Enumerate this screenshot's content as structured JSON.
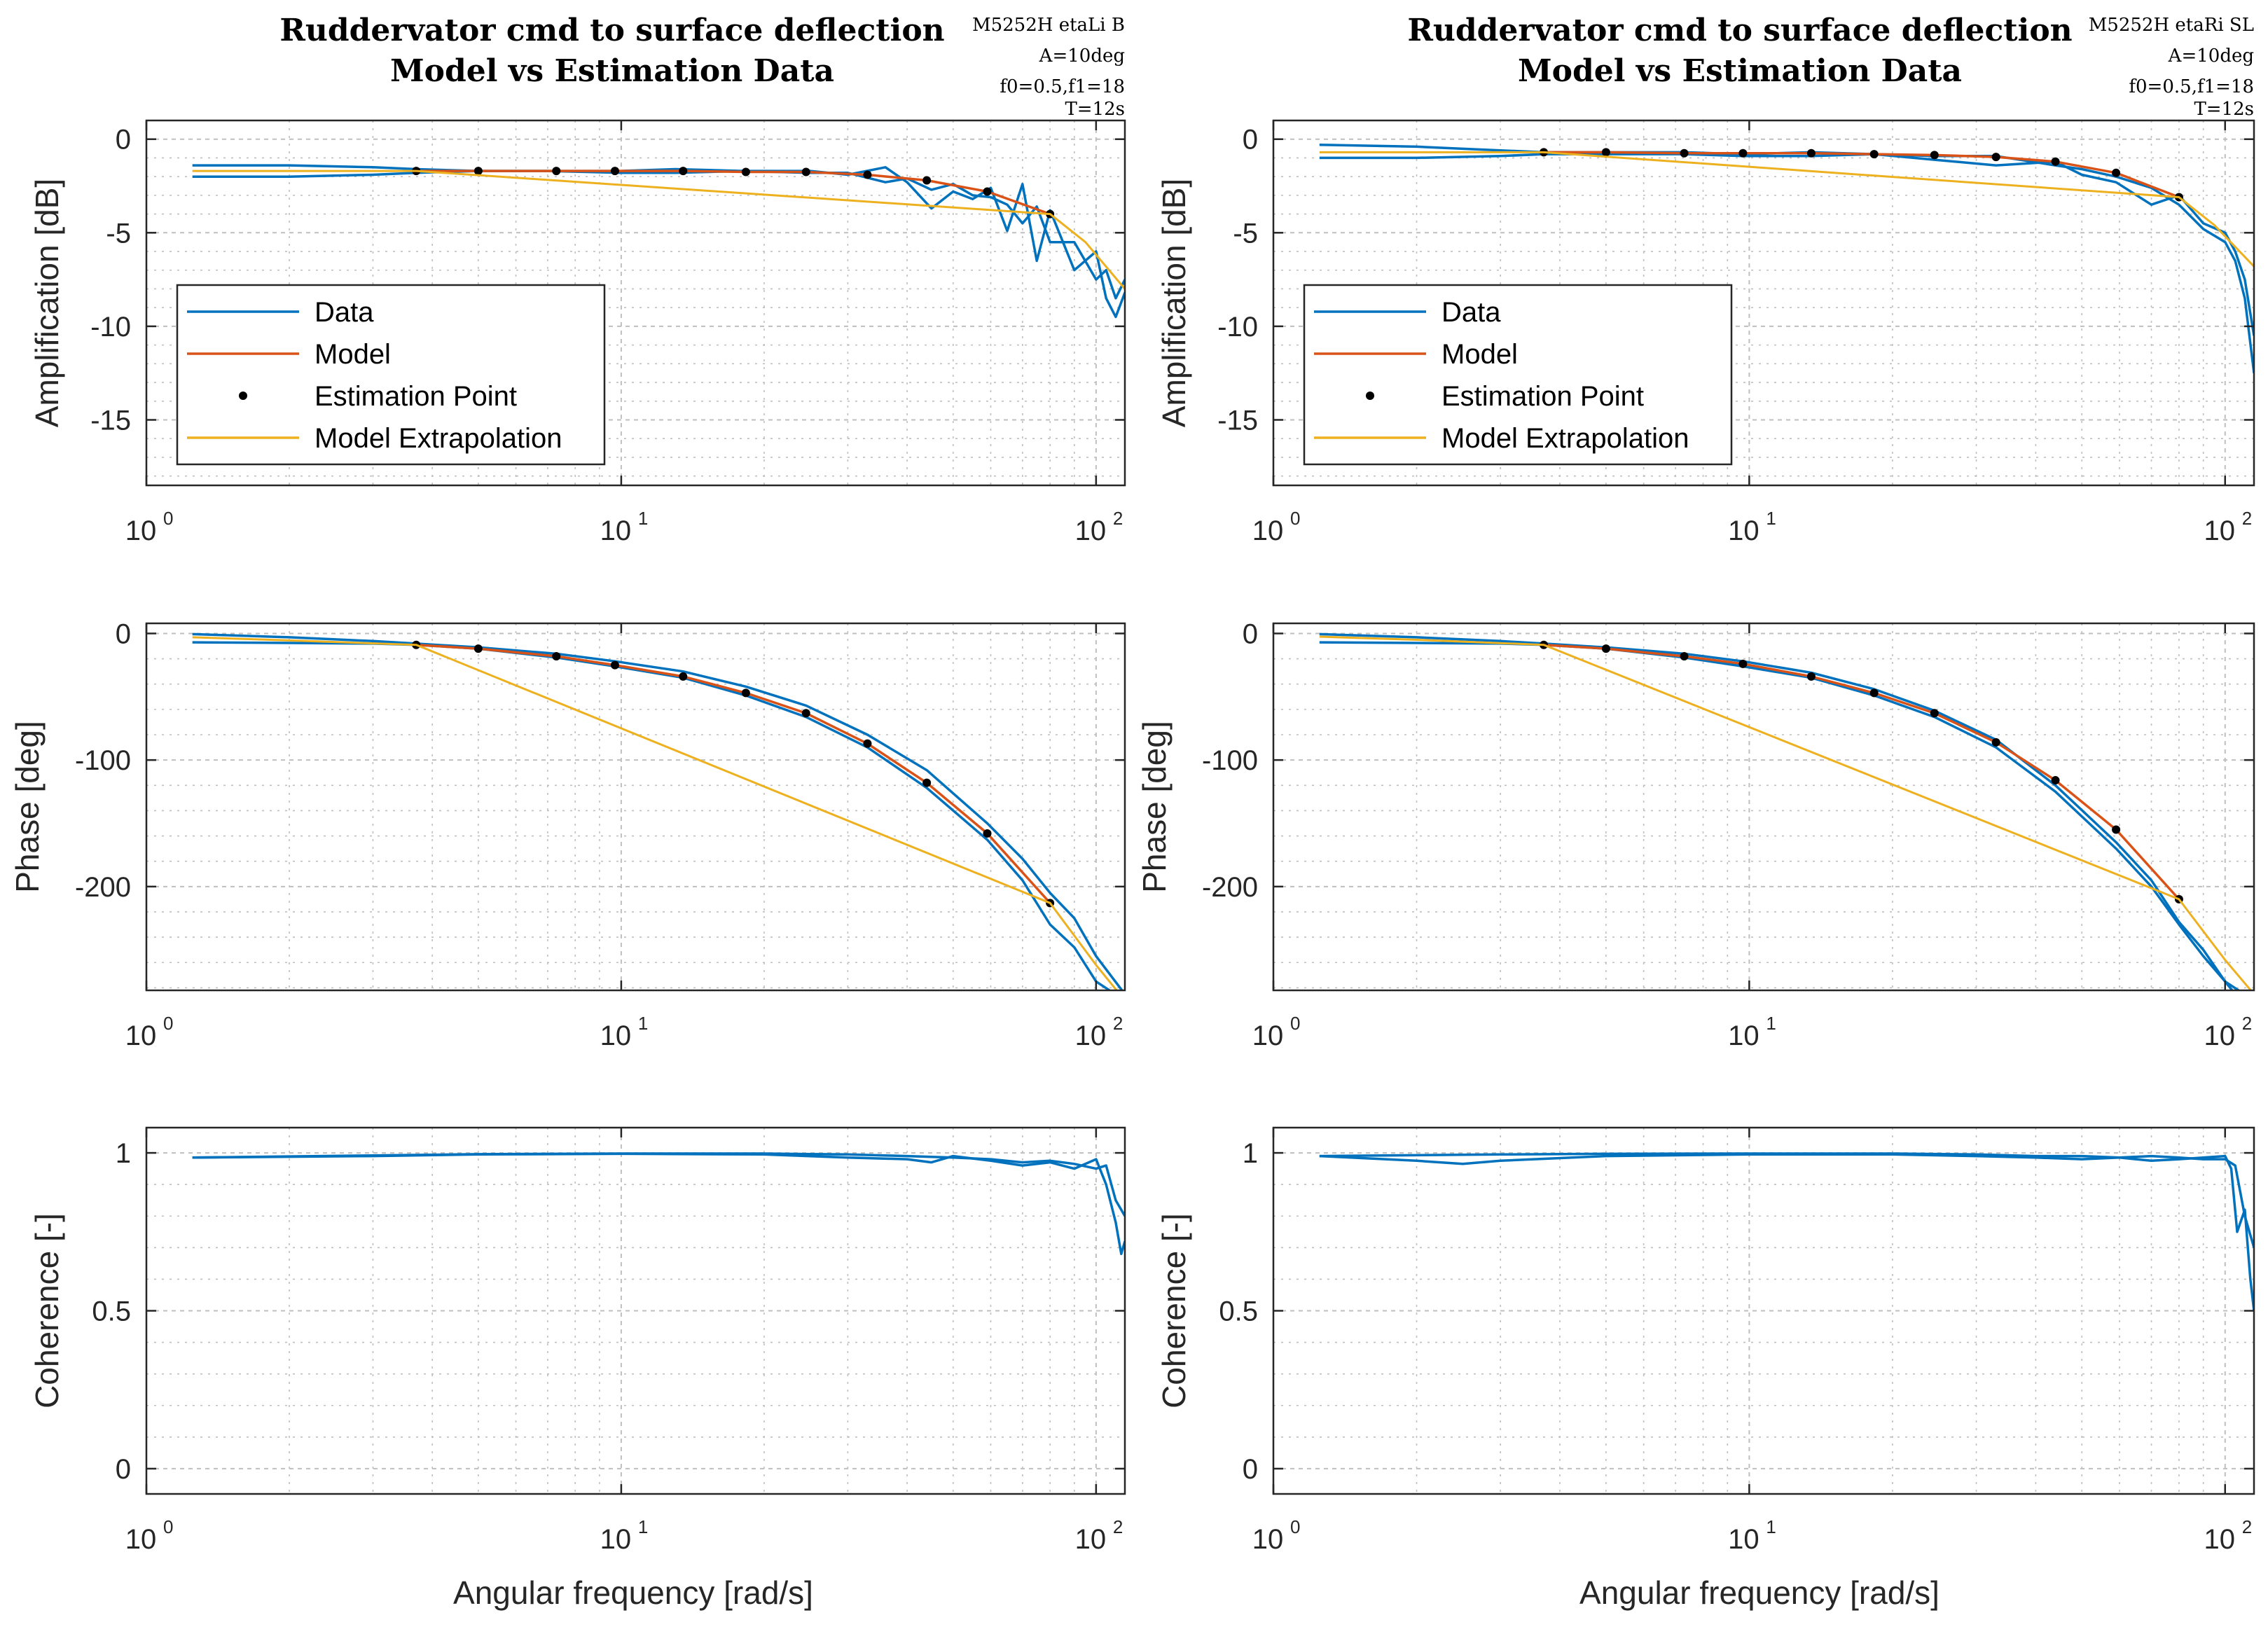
{
  "colors": {
    "data": "#0072BD",
    "model": "#D95319",
    "extrapolation": "#EDB120",
    "estimation_point": "#000000",
    "grid": "#bfbfbf",
    "axis": "#262626"
  },
  "figures": [
    {
      "title_line1": "Ruddervator cmd to surface deflection",
      "title_line2": "Model vs Estimation Data",
      "info": [
        "M5252H etaLi B",
        "A=10deg",
        "f0=0.5,f1=18",
        "T=12s"
      ]
    },
    {
      "title_line1": "Ruddervator cmd to surface deflection",
      "title_line2": "Model vs Estimation Data",
      "info": [
        "M5252H etaRi SL",
        "A=10deg",
        "f0=0.5,f1=18",
        "T=12s"
      ]
    }
  ],
  "legend": [
    "Data",
    "Model",
    "Estimation Point",
    "Model Extrapolation"
  ],
  "x_axis": {
    "label": "Angular frequency [rad/s]",
    "scale": "log",
    "xlim": [
      1,
      115
    ],
    "ticks": [
      {
        "base": "10",
        "exp": "0"
      },
      {
        "base": "10",
        "exp": "1"
      },
      {
        "base": "10",
        "exp": "2"
      }
    ]
  },
  "panel_labels": {
    "amplitude": "Amplification [dB]",
    "phase": "Phase [deg]",
    "coherence": "Coherence [-]"
  },
  "y_ticks": {
    "amplitude": [
      "0",
      "-5",
      "-10",
      "-15"
    ],
    "phase": [
      "0",
      "-100",
      "-200"
    ],
    "coherence": [
      "1",
      "0.5",
      "0"
    ]
  },
  "chart_data": [
    {
      "type": "line",
      "title": "Ruddervator cmd to surface deflection - Model vs Estimation Data (etaLi B) - Amplification",
      "xlabel": "Angular frequency [rad/s]",
      "ylabel": "Amplification [dB]",
      "xscale": "log",
      "xlim": [
        1,
        115
      ],
      "ylim": [
        -18.5,
        1
      ],
      "grid": true,
      "legend_location": "west",
      "series": [
        {
          "name": "Data",
          "x": [
            1.25,
            2,
            3,
            3.7,
            5,
            7,
            10,
            13,
            18,
            25,
            30,
            36,
            40,
            45,
            50,
            55,
            60,
            65,
            70,
            75,
            80,
            90,
            100,
            105,
            110,
            115
          ],
          "values": [
            -1.4,
            -1.4,
            -1.5,
            -1.6,
            -1.7,
            -1.7,
            -1.7,
            -1.6,
            -1.7,
            -1.7,
            -1.9,
            -1.5,
            -2.3,
            -3.7,
            -2.8,
            -3.2,
            -2.6,
            -4.9,
            -2.4,
            -6.5,
            -3.8,
            -7,
            -6,
            -8.5,
            -9.5,
            -8.2
          ]
        },
        {
          "name": "Data",
          "x": [
            1.25,
            2,
            3,
            3.7,
            5,
            7,
            10,
            13,
            18,
            25,
            30,
            36,
            40,
            45,
            50,
            55,
            60,
            65,
            70,
            75,
            80,
            90,
            100,
            105,
            110,
            115
          ],
          "values": [
            -2.0,
            -2.0,
            -1.9,
            -1.8,
            -1.7,
            -1.7,
            -1.8,
            -1.8,
            -1.7,
            -1.8,
            -1.8,
            -2.3,
            -2.1,
            -2.7,
            -2.4,
            -3.0,
            -3.1,
            -3.5,
            -4.5,
            -3.6,
            -5.5,
            -5.5,
            -7.5,
            -7.0,
            -8.5,
            -7.5
          ]
        },
        {
          "name": "Model",
          "x": [
            3.7,
            5,
            7.3,
            9.7,
            13.5,
            18.3,
            24.5,
            33,
            44,
            59,
            80
          ],
          "values": [
            -1.7,
            -1.7,
            -1.7,
            -1.7,
            -1.7,
            -1.75,
            -1.75,
            -1.9,
            -2.2,
            -2.8,
            -4.0
          ]
        },
        {
          "name": "Estimation Point",
          "x": [
            3.7,
            5,
            7.3,
            9.7,
            13.5,
            18.3,
            24.5,
            33,
            44,
            59,
            80
          ],
          "values": [
            -1.7,
            -1.7,
            -1.7,
            -1.7,
            -1.7,
            -1.75,
            -1.75,
            -1.9,
            -2.2,
            -2.8,
            -4.0
          ]
        },
        {
          "name": "Model Extrapolation",
          "x": [
            1.25,
            2,
            3.7,
            80,
            95,
            115
          ],
          "values": [
            -1.7,
            -1.7,
            -1.7,
            -4.0,
            -5.5,
            -8.0
          ]
        }
      ]
    },
    {
      "type": "line",
      "title": "Ruddervator cmd to surface deflection - Model vs Estimation Data (etaLi B) - Phase",
      "xlabel": "Angular frequency [rad/s]",
      "ylabel": "Phase [deg]",
      "xscale": "log",
      "xlim": [
        1,
        115
      ],
      "ylim": [
        -282,
        8
      ],
      "grid": true,
      "series": [
        {
          "name": "Data",
          "x": [
            1.25,
            2,
            3,
            3.7,
            5,
            7.3,
            9.7,
            13.5,
            18.3,
            24.5,
            33,
            44,
            59,
            70,
            80,
            90,
            100,
            115
          ],
          "values": [
            -0.5,
            -3,
            -6,
            -8,
            -11,
            -16,
            -22,
            -30,
            -42,
            -57,
            -80,
            -108,
            -150,
            -178,
            -205,
            -225,
            -255,
            -285
          ]
        },
        {
          "name": "Data",
          "x": [
            1.25,
            2,
            3,
            3.7,
            5,
            7.3,
            9.7,
            13.5,
            18.3,
            24.5,
            33,
            44,
            59,
            70,
            80,
            90,
            100,
            115
          ],
          "values": [
            -7,
            -7.5,
            -8,
            -9,
            -12,
            -19,
            -26,
            -35,
            -49,
            -66,
            -90,
            -122,
            -163,
            -195,
            -230,
            -248,
            -275,
            -290
          ]
        },
        {
          "name": "Model",
          "x": [
            3.7,
            5,
            7.3,
            9.7,
            13.5,
            18.3,
            24.5,
            33,
            44,
            59,
            80
          ],
          "values": [
            -9,
            -12,
            -18,
            -25,
            -34,
            -47,
            -63,
            -87,
            -118,
            -158,
            -213
          ]
        },
        {
          "name": "Estimation Point",
          "x": [
            3.7,
            5,
            7.3,
            9.7,
            13.5,
            18.3,
            24.5,
            33,
            44,
            59,
            80
          ],
          "values": [
            -9,
            -12,
            -18,
            -25,
            -34,
            -47,
            -63,
            -87,
            -118,
            -158,
            -213
          ]
        },
        {
          "name": "Model Extrapolation",
          "x": [
            1.25,
            2,
            3.7,
            80,
            100,
            115
          ],
          "values": [
            -3,
            -5.5,
            -9,
            -213,
            -262,
            -290
          ]
        }
      ]
    },
    {
      "type": "line",
      "title": "Ruddervator cmd to surface deflection - Model vs Estimation Data (etaLi B) - Coherence",
      "xlabel": "Angular frequency [rad/s]",
      "ylabel": "Coherence [-]",
      "xscale": "log",
      "xlim": [
        1,
        115
      ],
      "ylim": [
        -0.08,
        1.08
      ],
      "grid": true,
      "series": [
        {
          "name": "Data",
          "x": [
            1.25,
            3,
            5,
            10,
            20,
            30,
            40,
            45,
            50,
            60,
            70,
            80,
            90,
            100,
            105,
            110,
            113,
            115
          ],
          "values": [
            0.985,
            0.99,
            0.995,
            0.997,
            0.995,
            0.985,
            0.98,
            0.97,
            0.99,
            0.975,
            0.96,
            0.97,
            0.95,
            0.98,
            0.9,
            0.78,
            0.68,
            0.72
          ]
        },
        {
          "name": "Data",
          "x": [
            1.25,
            3,
            5,
            10,
            20,
            30,
            40,
            50,
            60,
            70,
            80,
            90,
            100,
            105,
            110,
            115
          ],
          "values": [
            0.985,
            0.992,
            0.996,
            0.998,
            0.998,
            0.995,
            0.99,
            0.985,
            0.98,
            0.97,
            0.975,
            0.965,
            0.95,
            0.96,
            0.85,
            0.8
          ]
        }
      ]
    },
    {
      "type": "line",
      "title": "Ruddervator cmd to surface deflection - Model vs Estimation Data (etaRi SL) - Amplification",
      "xlabel": "Angular frequency [rad/s]",
      "ylabel": "Amplification [dB]",
      "xscale": "log",
      "xlim": [
        1,
        115
      ],
      "ylim": [
        -18.5,
        1
      ],
      "grid": true,
      "legend_location": "west",
      "series": [
        {
          "name": "Data",
          "x": [
            1.25,
            2,
            3,
            3.7,
            5,
            7.3,
            9.7,
            13.5,
            18.3,
            24.5,
            33,
            44,
            50,
            59,
            70,
            80,
            90,
            100,
            105,
            110,
            115
          ],
          "values": [
            -0.3,
            -0.4,
            -0.6,
            -0.7,
            -0.7,
            -0.7,
            -0.8,
            -0.7,
            -0.8,
            -0.9,
            -0.9,
            -1.4,
            -1.6,
            -2.0,
            -2.6,
            -3.5,
            -4.8,
            -5.5,
            -6.5,
            -8.5,
            -12.5
          ]
        },
        {
          "name": "Data",
          "x": [
            1.25,
            2,
            3,
            3.7,
            5,
            7.3,
            9.7,
            13.5,
            18.3,
            24.5,
            33,
            44,
            50,
            59,
            70,
            80,
            90,
            100,
            105,
            110,
            115
          ],
          "values": [
            -1.0,
            -1.0,
            -0.9,
            -0.8,
            -0.8,
            -0.8,
            -0.9,
            -0.9,
            -0.8,
            -1.1,
            -1.4,
            -1.2,
            -1.9,
            -2.3,
            -3.5,
            -3.0,
            -4.5,
            -5.0,
            -6.0,
            -7.5,
            -10.5
          ]
        },
        {
          "name": "Model",
          "x": [
            3.7,
            5,
            7.3,
            9.7,
            13.5,
            18.3,
            24.5,
            33,
            44,
            59,
            80
          ],
          "values": [
            -0.7,
            -0.7,
            -0.75,
            -0.75,
            -0.75,
            -0.8,
            -0.85,
            -0.95,
            -1.2,
            -1.8,
            -3.1
          ]
        },
        {
          "name": "Estimation Point",
          "x": [
            3.7,
            5,
            7.3,
            9.7,
            13.5,
            18.3,
            24.5,
            33,
            44,
            59,
            80
          ],
          "values": [
            -0.7,
            -0.7,
            -0.75,
            -0.75,
            -0.75,
            -0.8,
            -0.85,
            -0.95,
            -1.2,
            -1.8,
            -3.1
          ]
        },
        {
          "name": "Model Extrapolation",
          "x": [
            1.25,
            2,
            3.7,
            80,
            95,
            115
          ],
          "values": [
            -0.7,
            -0.7,
            -0.7,
            -3.1,
            -4.6,
            -6.8
          ]
        }
      ]
    },
    {
      "type": "line",
      "title": "Ruddervator cmd to surface deflection - Model vs Estimation Data (etaRi SL) - Phase",
      "xlabel": "Angular frequency [rad/s]",
      "ylabel": "Phase [deg]",
      "xscale": "log",
      "xlim": [
        1,
        115
      ],
      "ylim": [
        -282,
        8
      ],
      "grid": true,
      "series": [
        {
          "name": "Data",
          "x": [
            1.25,
            2,
            3,
            3.7,
            5,
            7.3,
            9.7,
            13.5,
            18.3,
            24.5,
            33,
            44,
            59,
            70,
            80,
            90,
            100,
            105
          ],
          "values": [
            -0.5,
            -3,
            -6,
            -8,
            -11,
            -16,
            -22,
            -31,
            -44,
            -61,
            -84,
            -120,
            -165,
            -195,
            -228,
            -250,
            -275,
            -285
          ]
        },
        {
          "name": "Data",
          "x": [
            1.25,
            2,
            3,
            3.7,
            5,
            7.3,
            9.7,
            13.5,
            18.3,
            24.5,
            33,
            44,
            59,
            70,
            80,
            90,
            100,
            115
          ],
          "values": [
            -7,
            -7.5,
            -8,
            -9,
            -12,
            -19,
            -26,
            -35,
            -49,
            -66,
            -90,
            -125,
            -170,
            -200,
            -230,
            -255,
            -275,
            -290
          ]
        },
        {
          "name": "Model",
          "x": [
            3.7,
            5,
            7.3,
            9.7,
            13.5,
            18.3,
            24.5,
            33,
            44,
            59,
            80
          ],
          "values": [
            -9,
            -12,
            -18,
            -24,
            -34,
            -47,
            -63,
            -86,
            -116,
            -155,
            -210
          ]
        },
        {
          "name": "Estimation Point",
          "x": [
            3.7,
            5,
            7.3,
            9.7,
            13.5,
            18.3,
            24.5,
            33,
            44,
            59,
            80
          ],
          "values": [
            -9,
            -12,
            -18,
            -24,
            -34,
            -47,
            -63,
            -86,
            -116,
            -155,
            -210
          ]
        },
        {
          "name": "Model Extrapolation",
          "x": [
            1.25,
            2,
            3.7,
            80,
            100,
            115
          ],
          "values": [
            -2.5,
            -5,
            -9,
            -210,
            -258,
            -285
          ]
        }
      ]
    },
    {
      "type": "line",
      "title": "Ruddervator cmd to surface deflection - Model vs Estimation Data (etaRi SL) - Coherence",
      "xlabel": "Angular frequency [rad/s]",
      "ylabel": "Coherence [-]",
      "xscale": "log",
      "xlim": [
        1,
        115
      ],
      "ylim": [
        -0.08,
        1.08
      ],
      "grid": true,
      "series": [
        {
          "name": "Data",
          "x": [
            1.25,
            2,
            2.5,
            3,
            5,
            10,
            20,
            30,
            40,
            50,
            60,
            70,
            80,
            90,
            100,
            103,
            106,
            110,
            113,
            115
          ],
          "values": [
            0.99,
            0.975,
            0.965,
            0.975,
            0.99,
            0.995,
            0.995,
            0.99,
            0.985,
            0.98,
            0.985,
            0.975,
            0.98,
            0.985,
            0.99,
            0.95,
            0.75,
            0.82,
            0.6,
            0.5
          ]
        },
        {
          "name": "Data",
          "x": [
            1.25,
            3,
            5,
            10,
            20,
            30,
            40,
            50,
            60,
            70,
            80,
            90,
            100,
            105,
            110,
            115
          ],
          "values": [
            0.99,
            0.995,
            0.997,
            0.998,
            0.998,
            0.995,
            0.99,
            0.99,
            0.985,
            0.99,
            0.985,
            0.98,
            0.98,
            0.96,
            0.8,
            0.7
          ]
        }
      ]
    }
  ]
}
